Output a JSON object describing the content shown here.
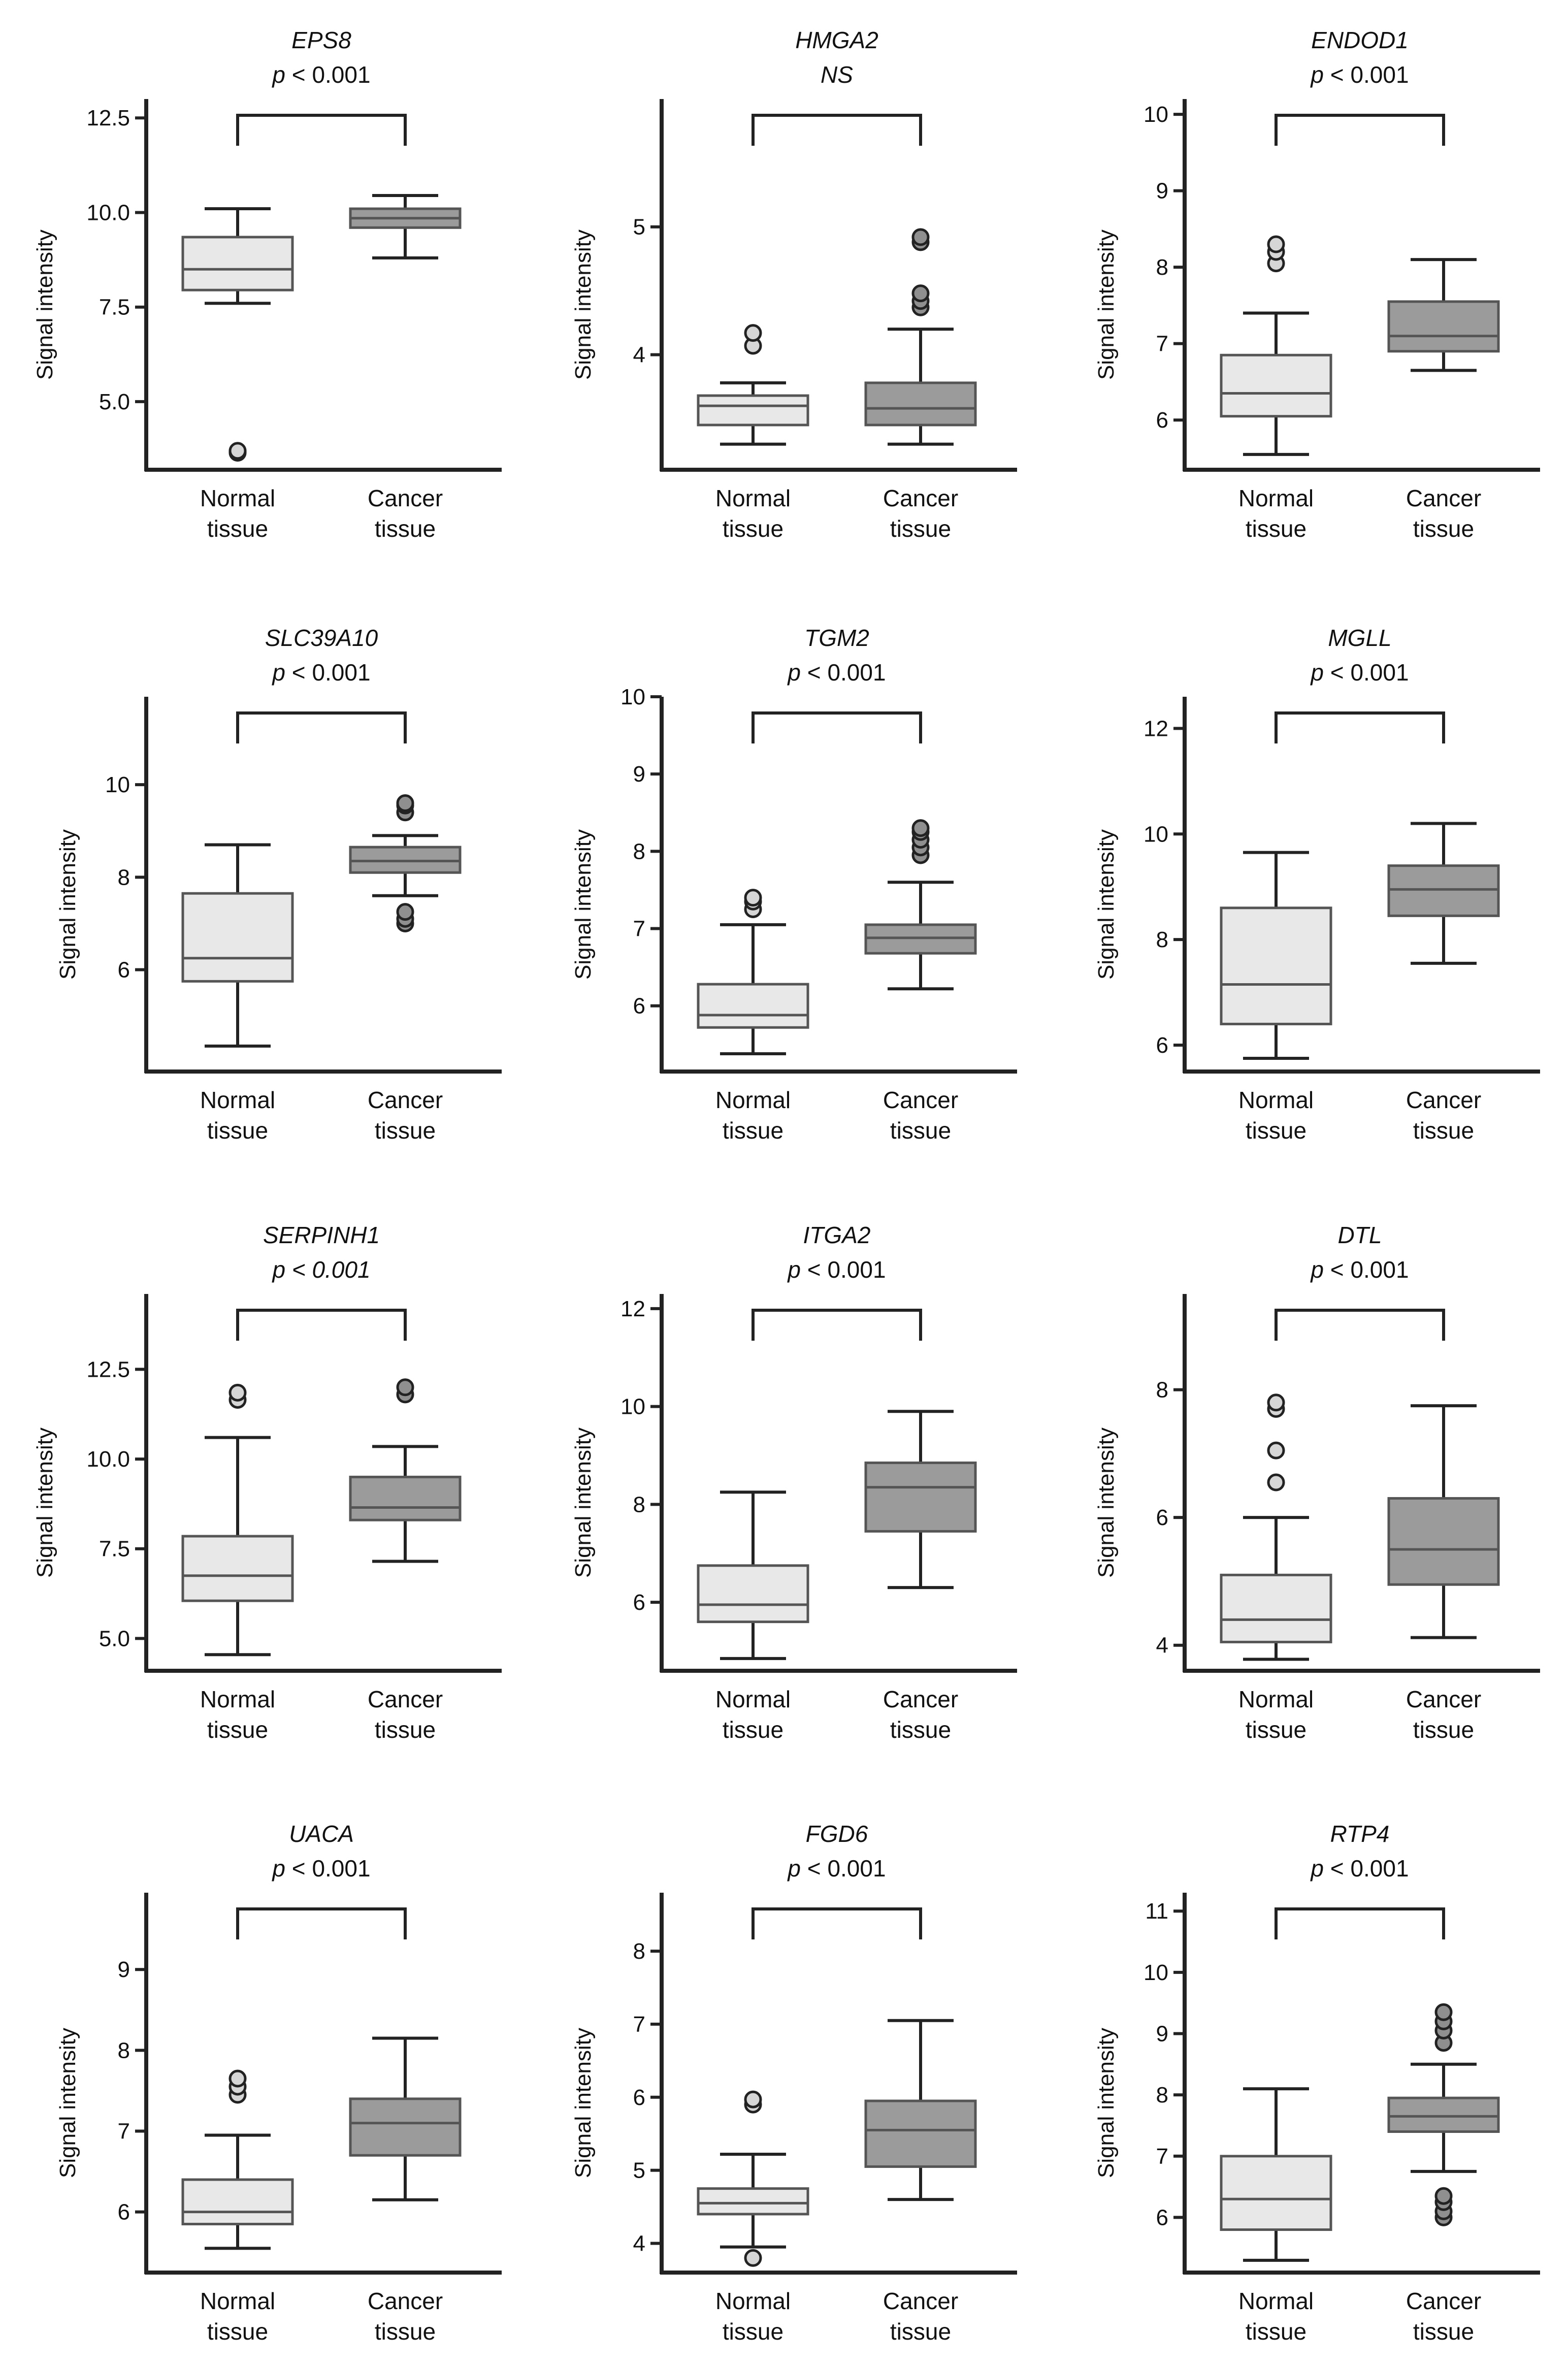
{
  "figure": {
    "ylabel": "Signal intensity",
    "group_labels": [
      [
        "Normal",
        "tissue"
      ],
      [
        "Cancer",
        "tissue"
      ]
    ]
  },
  "colors": {
    "normal_fill": "#e8e8e8",
    "cancer_fill": "#9b9b9b",
    "normal_outlier": "#d6d6d6",
    "cancer_outlier": "#8f8f8f",
    "stroke": "#222222",
    "box_stroke": "#555555"
  },
  "chart_data": [
    {
      "type": "boxplot",
      "title": "EPS8",
      "annotation": "p < 0.001",
      "annotation_italic": "p",
      "xlabel": "",
      "ylabel": "Signal intensity",
      "categories": [
        "Normal tissue",
        "Cancer tissue"
      ],
      "ylim": [
        3.2,
        13.0
      ],
      "yticks": [
        5.0,
        7.5,
        10.0,
        12.5
      ],
      "tick_labels": [
        "5.0",
        "7.5",
        "10.0",
        "12.5"
      ],
      "boxes": [
        {
          "name": "Normal tissue",
          "min": 7.6,
          "q1": 7.95,
          "median": 8.5,
          "q3": 9.35,
          "max": 10.1,
          "outliers": [
            3.65,
            3.7
          ]
        },
        {
          "name": "Cancer tissue",
          "min": 8.8,
          "q1": 9.6,
          "median": 9.85,
          "q3": 10.1,
          "max": 10.45,
          "outliers": []
        }
      ]
    },
    {
      "type": "boxplot",
      "title": "HMGA2",
      "annotation": "NS",
      "annotation_italic": "all",
      "xlabel": "",
      "ylabel": "Signal intensity",
      "categories": [
        "Normal tissue",
        "Cancer tissue"
      ],
      "ylim": [
        3.1,
        6.0
      ],
      "yticks": [
        4,
        5
      ],
      "tick_labels": [
        "4",
        "5"
      ],
      "boxes": [
        {
          "name": "Normal tissue",
          "min": 3.3,
          "q1": 3.45,
          "median": 3.6,
          "q3": 3.68,
          "max": 3.78,
          "outliers": [
            4.07,
            4.17
          ]
        },
        {
          "name": "Cancer tissue",
          "min": 3.3,
          "q1": 3.45,
          "median": 3.58,
          "q3": 3.78,
          "max": 4.2,
          "outliers": [
            4.37,
            4.42,
            4.48,
            4.88,
            4.92
          ]
        }
      ]
    },
    {
      "type": "boxplot",
      "title": "ENDOD1",
      "annotation": "p < 0.001",
      "annotation_italic": "p",
      "xlabel": "",
      "ylabel": "Signal intensity",
      "categories": [
        "Normal tissue",
        "Cancer tissue"
      ],
      "ylim": [
        5.35,
        10.2
      ],
      "yticks": [
        6,
        7,
        8,
        9,
        10
      ],
      "tick_labels": [
        "6",
        "7",
        "8",
        "9",
        "10"
      ],
      "boxes": [
        {
          "name": "Normal tissue",
          "min": 5.55,
          "q1": 6.05,
          "median": 6.35,
          "q3": 6.85,
          "max": 7.4,
          "outliers": [
            8.05,
            8.2,
            8.3
          ]
        },
        {
          "name": "Cancer tissue",
          "min": 6.65,
          "q1": 6.9,
          "median": 7.1,
          "q3": 7.55,
          "max": 8.1,
          "outliers": []
        }
      ]
    },
    {
      "type": "boxplot",
      "title": "SLC39A10",
      "annotation": "p < 0.001",
      "annotation_italic": "p",
      "xlabel": "",
      "ylabel": "Signal intensity",
      "categories": [
        "Normal tissue",
        "Cancer tissue"
      ],
      "ylim": [
        3.8,
        11.9
      ],
      "yticks": [
        6,
        8,
        10
      ],
      "tick_labels": [
        "6",
        "8",
        "10"
      ],
      "boxes": [
        {
          "name": "Normal tissue",
          "min": 4.35,
          "q1": 5.75,
          "median": 6.25,
          "q3": 7.65,
          "max": 8.7,
          "outliers": []
        },
        {
          "name": "Cancer tissue",
          "min": 7.6,
          "q1": 8.1,
          "median": 8.35,
          "q3": 8.65,
          "max": 8.9,
          "outliers": [
            7.0,
            7.1,
            7.25,
            9.4,
            9.55,
            9.6
          ]
        }
      ]
    },
    {
      "type": "boxplot",
      "title": "TGM2",
      "annotation": "p < 0.001",
      "annotation_italic": "p",
      "xlabel": "",
      "ylabel": "Signal intensity",
      "categories": [
        "Normal tissue",
        "Cancer tissue"
      ],
      "ylim": [
        5.15,
        10.0
      ],
      "yticks": [
        6,
        7,
        8,
        9,
        10
      ],
      "tick_labels": [
        "6",
        "7",
        "8",
        "9",
        "10"
      ],
      "boxes": [
        {
          "name": "Normal tissue",
          "min": 5.38,
          "q1": 5.72,
          "median": 5.88,
          "q3": 6.28,
          "max": 7.05,
          "outliers": [
            7.25,
            7.35,
            7.4
          ]
        },
        {
          "name": "Cancer tissue",
          "min": 6.22,
          "q1": 6.68,
          "median": 6.88,
          "q3": 7.05,
          "max": 7.6,
          "outliers": [
            7.95,
            8.05,
            8.15,
            8.25,
            8.3
          ]
        }
      ]
    },
    {
      "type": "boxplot",
      "title": "MGLL",
      "annotation": "p < 0.001",
      "annotation_italic": "p",
      "xlabel": "",
      "ylabel": "Signal intensity",
      "categories": [
        "Normal tissue",
        "Cancer tissue"
      ],
      "ylim": [
        5.5,
        12.6
      ],
      "yticks": [
        6,
        8,
        10,
        12
      ],
      "tick_labels": [
        "6",
        "8",
        "10",
        "12"
      ],
      "boxes": [
        {
          "name": "Normal tissue",
          "min": 5.75,
          "q1": 6.4,
          "median": 7.15,
          "q3": 8.6,
          "max": 9.65,
          "outliers": []
        },
        {
          "name": "Cancer tissue",
          "min": 7.55,
          "q1": 8.45,
          "median": 8.95,
          "q3": 9.4,
          "max": 10.2,
          "outliers": []
        }
      ]
    },
    {
      "type": "boxplot",
      "title": "SERPINH1",
      "annotation": "p < 0.001",
      "annotation_italic": "all",
      "xlabel": "",
      "ylabel": "Signal intensity",
      "categories": [
        "Normal tissue",
        "Cancer tissue"
      ],
      "ylim": [
        4.1,
        14.6
      ],
      "yticks": [
        5.0,
        7.5,
        10.0,
        12.5
      ],
      "tick_labels": [
        "5.0",
        "7.5",
        "10.0",
        "12.5"
      ],
      "boxes": [
        {
          "name": "Normal tissue",
          "min": 4.55,
          "q1": 6.05,
          "median": 6.75,
          "q3": 7.85,
          "max": 10.6,
          "outliers": [
            11.65,
            11.85
          ]
        },
        {
          "name": "Cancer tissue",
          "min": 7.15,
          "q1": 8.3,
          "median": 8.65,
          "q3": 9.5,
          "max": 10.35,
          "outliers": [
            11.8,
            12.0
          ]
        }
      ]
    },
    {
      "type": "boxplot",
      "title": "ITGA2",
      "annotation": "p < 0.001",
      "annotation_italic": "p",
      "xlabel": "",
      "ylabel": "Signal intensity",
      "categories": [
        "Normal tissue",
        "Cancer tissue"
      ],
      "ylim": [
        4.6,
        12.3
      ],
      "yticks": [
        6,
        8,
        10,
        12
      ],
      "tick_labels": [
        "6",
        "8",
        "10",
        "12"
      ],
      "boxes": [
        {
          "name": "Normal tissue",
          "min": 4.85,
          "q1": 5.6,
          "median": 5.95,
          "q3": 6.75,
          "max": 8.25,
          "outliers": []
        },
        {
          "name": "Cancer tissue",
          "min": 6.3,
          "q1": 7.45,
          "median": 8.35,
          "q3": 8.85,
          "max": 9.9,
          "outliers": []
        }
      ]
    },
    {
      "type": "boxplot",
      "title": "DTL",
      "annotation": "p < 0.001",
      "annotation_italic": "p",
      "xlabel": "",
      "ylabel": "Signal intensity",
      "categories": [
        "Normal tissue",
        "Cancer tissue"
      ],
      "ylim": [
        3.6,
        9.5
      ],
      "yticks": [
        4,
        6,
        8
      ],
      "tick_labels": [
        "4",
        "6",
        "8"
      ],
      "boxes": [
        {
          "name": "Normal tissue",
          "min": 3.78,
          "q1": 4.05,
          "median": 4.4,
          "q3": 5.1,
          "max": 6.0,
          "outliers": [
            6.55,
            7.05,
            7.7,
            7.8
          ]
        },
        {
          "name": "Cancer tissue",
          "min": 4.12,
          "q1": 4.95,
          "median": 5.5,
          "q3": 6.3,
          "max": 7.75,
          "outliers": []
        }
      ]
    },
    {
      "type": "boxplot",
      "title": "UACA",
      "annotation": "p < 0.001",
      "annotation_italic": "p",
      "xlabel": "",
      "ylabel": "Signal intensity",
      "categories": [
        "Normal tissue",
        "Cancer tissue"
      ],
      "ylim": [
        5.25,
        9.95
      ],
      "yticks": [
        6,
        7,
        8,
        9
      ],
      "tick_labels": [
        "6",
        "7",
        "8",
        "9"
      ],
      "boxes": [
        {
          "name": "Normal tissue",
          "min": 5.55,
          "q1": 5.85,
          "median": 6.0,
          "q3": 6.4,
          "max": 6.95,
          "outliers": [
            7.45,
            7.55,
            7.65
          ]
        },
        {
          "name": "Cancer tissue",
          "min": 6.15,
          "q1": 6.7,
          "median": 7.1,
          "q3": 7.4,
          "max": 8.15,
          "outliers": []
        }
      ]
    },
    {
      "type": "boxplot",
      "title": "FGD6",
      "annotation": "p < 0.001",
      "annotation_italic": "p",
      "xlabel": "",
      "ylabel": "Signal intensity",
      "categories": [
        "Normal tissue",
        "Cancer tissue"
      ],
      "ylim": [
        3.6,
        8.8
      ],
      "yticks": [
        4,
        5,
        6,
        7,
        8
      ],
      "tick_labels": [
        "4",
        "5",
        "6",
        "7",
        "8"
      ],
      "boxes": [
        {
          "name": "Normal tissue",
          "min": 3.95,
          "q1": 4.4,
          "median": 4.55,
          "q3": 4.75,
          "max": 5.22,
          "outliers": [
            3.8,
            5.9,
            5.97
          ]
        },
        {
          "name": "Cancer tissue",
          "min": 4.6,
          "q1": 5.05,
          "median": 5.55,
          "q3": 5.95,
          "max": 7.05,
          "outliers": []
        }
      ]
    },
    {
      "type": "boxplot",
      "title": "RTP4",
      "annotation": "p < 0.001",
      "annotation_italic": "p",
      "xlabel": "",
      "ylabel": "Signal intensity",
      "categories": [
        "Normal tissue",
        "Cancer tissue"
      ],
      "ylim": [
        5.1,
        11.3
      ],
      "yticks": [
        6,
        7,
        8,
        9,
        10,
        11
      ],
      "tick_labels": [
        "6",
        "7",
        "8",
        "9",
        "10",
        "11"
      ],
      "boxes": [
        {
          "name": "Normal tissue",
          "min": 5.3,
          "q1": 5.8,
          "median": 6.3,
          "q3": 7.0,
          "max": 8.1,
          "outliers": []
        },
        {
          "name": "Cancer tissue",
          "min": 6.75,
          "q1": 7.4,
          "median": 7.65,
          "q3": 7.95,
          "max": 8.5,
          "outliers": [
            6.0,
            6.1,
            6.25,
            6.35,
            8.85,
            9.05,
            9.2,
            9.35
          ]
        }
      ]
    }
  ]
}
